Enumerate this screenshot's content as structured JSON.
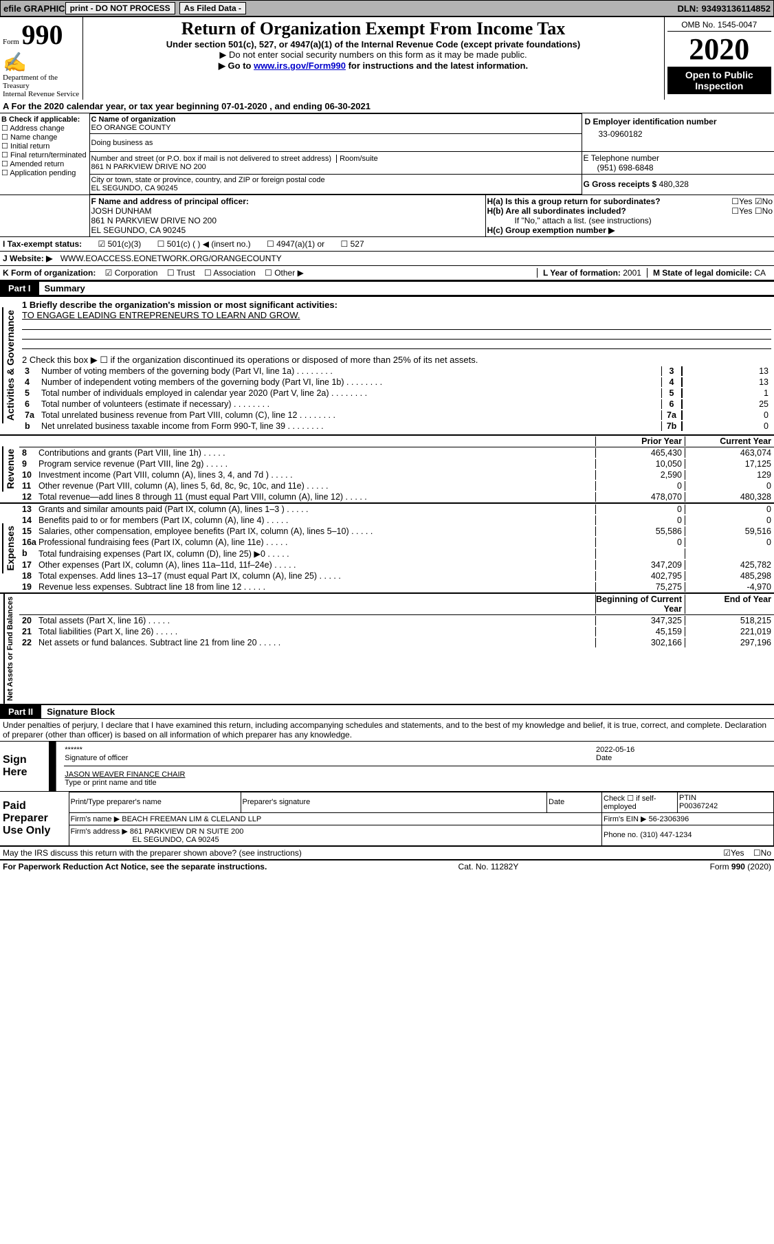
{
  "topbar": {
    "efile": "efile GRAPHIC",
    "print": "print - DO NOT PROCESS",
    "asfiled": "As Filed Data -",
    "dln_label": "DLN:",
    "dln": "93493136114852"
  },
  "header": {
    "form_prefix": "Form",
    "form_num": "990",
    "dept": "Department of the Treasury\nInternal Revenue Service",
    "title": "Return of Organization Exempt From Income Tax",
    "subtitle": "Under section 501(c), 527, or 4947(a)(1) of the Internal Revenue Code (except private foundations)",
    "note1": "▶ Do not enter social security numbers on this form as it may be made public.",
    "note2_pre": "▶ Go to ",
    "note2_link": "www.irs.gov/Form990",
    "note2_post": " for instructions and the latest information.",
    "omb": "OMB No. 1545-0047",
    "year": "2020",
    "open": "Open to Public Inspection"
  },
  "a_line": {
    "label": "A  For the 2020 calendar year, or tax year beginning ",
    "begin": "07-01-2020",
    "mid": "  , and ending ",
    "end": "06-30-2021"
  },
  "box_b": {
    "label": "B Check if applicable:",
    "opts": [
      "Address change",
      "Name change",
      "Initial return",
      "Final return/terminated",
      "Amended return",
      "Application pending"
    ]
  },
  "box_c": {
    "name_label": "C Name of organization",
    "name": "EO ORANGE COUNTY",
    "dba_label": "Doing business as",
    "addr_label": "Number and street (or P.O. box if mail is not delivered to street address)",
    "room_label": "Room/suite",
    "addr": "861 N PARKVIEW DRIVE NO 200",
    "city_label": "City or town, state or province, country, and ZIP or foreign postal code",
    "city": "EL SEGUNDO, CA  90245"
  },
  "box_d": {
    "label": "D Employer identification number",
    "value": "33-0960182"
  },
  "box_e": {
    "label": "E Telephone number",
    "value": "(951) 698-6848"
  },
  "box_g": {
    "label": "G Gross receipts $",
    "value": "480,328"
  },
  "box_f": {
    "label": "F  Name and address of principal officer:",
    "name": "JOSH DUNHAM",
    "addr": "861 N PARKVIEW DRIVE NO 200",
    "city": "EL SEGUNDO, CA  90245"
  },
  "box_h": {
    "ha": "H(a)  Is this a group return for subordinates?",
    "ha_yes": "Yes",
    "ha_no": "No",
    "hb": "H(b)  Are all subordinates included?",
    "hb_note": "If \"No,\" attach a list. (see instructions)",
    "hc": "H(c)  Group exemption number ▶"
  },
  "line_i": {
    "label": "I  Tax-exempt status:",
    "opts": [
      "501(c)(3)",
      "501(c) (   ) ◀ (insert no.)",
      "4947(a)(1) or",
      "527"
    ]
  },
  "line_j": {
    "label": "J  Website: ▶",
    "value": "WWW.EOACCESS.EONETWORK.ORG/ORANGECOUNTY"
  },
  "line_k": {
    "label": "K Form of organization:",
    "corp": "Corporation",
    "trust": "Trust",
    "assoc": "Association",
    "other": "Other ▶"
  },
  "line_l": {
    "label": "L Year of formation:",
    "value": "2001"
  },
  "line_m": {
    "label": "M State of legal domicile:",
    "value": "CA"
  },
  "part1": {
    "label": "Part I",
    "title": "Summary"
  },
  "summary": {
    "q1_label": "1 Briefly describe the organization's mission or most significant activities:",
    "q1_value": "TO ENGAGE LEADING ENTREPRENEURS TO LEARN AND GROW.",
    "q2": "2  Check this box ▶ ☐  if the organization discontinued its operations or disposed of more than 25% of its net assets.",
    "rows_gov": [
      {
        "n": "3",
        "t": "Number of voting members of the governing body (Part VI, line 1a)",
        "box": "3",
        "v": "13"
      },
      {
        "n": "4",
        "t": "Number of independent voting members of the governing body (Part VI, line 1b)",
        "box": "4",
        "v": "13"
      },
      {
        "n": "5",
        "t": "Total number of individuals employed in calendar year 2020 (Part V, line 2a)",
        "box": "5",
        "v": "1"
      },
      {
        "n": "6",
        "t": "Total number of volunteers (estimate if necessary)",
        "box": "6",
        "v": "25"
      },
      {
        "n": "7a",
        "t": "Total unrelated business revenue from Part VIII, column (C), line 12",
        "box": "7a",
        "v": "0"
      },
      {
        "n": "b",
        "t": "Net unrelated business taxable income from Form 990-T, line 39",
        "box": "7b",
        "v": "0"
      }
    ],
    "col_prior": "Prior Year",
    "col_current": "Current Year",
    "col_begin": "Beginning of Current Year",
    "col_end": "End of Year",
    "revenue": [
      {
        "n": "8",
        "t": "Contributions and grants (Part VIII, line 1h)",
        "p": "465,430",
        "c": "463,074"
      },
      {
        "n": "9",
        "t": "Program service revenue (Part VIII, line 2g)",
        "p": "10,050",
        "c": "17,125"
      },
      {
        "n": "10",
        "t": "Investment income (Part VIII, column (A), lines 3, 4, and 7d )",
        "p": "2,590",
        "c": "129"
      },
      {
        "n": "11",
        "t": "Other revenue (Part VIII, column (A), lines 5, 6d, 8c, 9c, 10c, and 11e)",
        "p": "0",
        "c": "0"
      },
      {
        "n": "12",
        "t": "Total revenue—add lines 8 through 11 (must equal Part VIII, column (A), line 12)",
        "p": "478,070",
        "c": "480,328"
      }
    ],
    "expenses": [
      {
        "n": "13",
        "t": "Grants and similar amounts paid (Part IX, column (A), lines 1–3 )",
        "p": "0",
        "c": "0"
      },
      {
        "n": "14",
        "t": "Benefits paid to or for members (Part IX, column (A), line 4)",
        "p": "0",
        "c": "0"
      },
      {
        "n": "15",
        "t": "Salaries, other compensation, employee benefits (Part IX, column (A), lines 5–10)",
        "p": "55,586",
        "c": "59,516"
      },
      {
        "n": "16a",
        "t": "Professional fundraising fees (Part IX, column (A), line 11e)",
        "p": "0",
        "c": "0"
      },
      {
        "n": "b",
        "t": "Total fundraising expenses (Part IX, column (D), line 25) ▶0",
        "p": "",
        "c": ""
      },
      {
        "n": "17",
        "t": "Other expenses (Part IX, column (A), lines 11a–11d, 11f–24e)",
        "p": "347,209",
        "c": "425,782"
      },
      {
        "n": "18",
        "t": "Total expenses. Add lines 13–17 (must equal Part IX, column (A), line 25)",
        "p": "402,795",
        "c": "485,298"
      },
      {
        "n": "19",
        "t": "Revenue less expenses. Subtract line 18 from line 12",
        "p": "75,275",
        "c": "-4,970"
      }
    ],
    "netassets": [
      {
        "n": "20",
        "t": "Total assets (Part X, line 16)",
        "p": "347,325",
        "c": "518,215"
      },
      {
        "n": "21",
        "t": "Total liabilities (Part X, line 26)",
        "p": "45,159",
        "c": "221,019"
      },
      {
        "n": "22",
        "t": "Net assets or fund balances. Subtract line 21 from line 20",
        "p": "302,166",
        "c": "297,196"
      }
    ]
  },
  "part2": {
    "label": "Part II",
    "title": "Signature Block"
  },
  "sig": {
    "perjury": "Under penalties of perjury, I declare that I have examined this return, including accompanying schedules and statements, and to the best of my knowledge and belief, it is true, correct, and complete. Declaration of preparer (other than officer) is based on all information of which preparer has any knowledge.",
    "stars": "******",
    "sig_label": "Signature of officer",
    "date_label": "Date",
    "date": "2022-05-16",
    "name_title": "JASON WEAVER FINANCE CHAIR",
    "type_label": "Type or print name and title",
    "sign_here": "Sign Here"
  },
  "preparer": {
    "label": "Paid Preparer Use Only",
    "h1": "Print/Type preparer's name",
    "h2": "Preparer's signature",
    "h3": "Date",
    "h4": "Check ☐ if self-employed",
    "h5_label": "PTIN",
    "h5": "P00367242",
    "firm_name_label": "Firm's name    ▶",
    "firm_name": "BEACH FREEMAN LIM & CLELAND LLP",
    "firm_ein_label": "Firm's EIN ▶",
    "firm_ein": "56-2306396",
    "firm_addr_label": "Firm's address ▶",
    "firm_addr": "861 PARKVIEW DR N SUITE 200",
    "firm_city": "EL SEGUNDO, CA  90245",
    "phone_label": "Phone no.",
    "phone": "(310) 447-1234"
  },
  "discuss": {
    "text": "May the IRS discuss this return with the preparer shown above? (see instructions)",
    "yes": "Yes",
    "no": "No"
  },
  "footer": {
    "left": "For Paperwork Reduction Act Notice, see the separate instructions.",
    "mid": "Cat. No. 11282Y",
    "right": "Form 990 (2020)"
  },
  "vlabels": {
    "gov": "Activities & Governance",
    "rev": "Revenue",
    "exp": "Expenses",
    "net": "Net Assets or Fund Balances"
  }
}
